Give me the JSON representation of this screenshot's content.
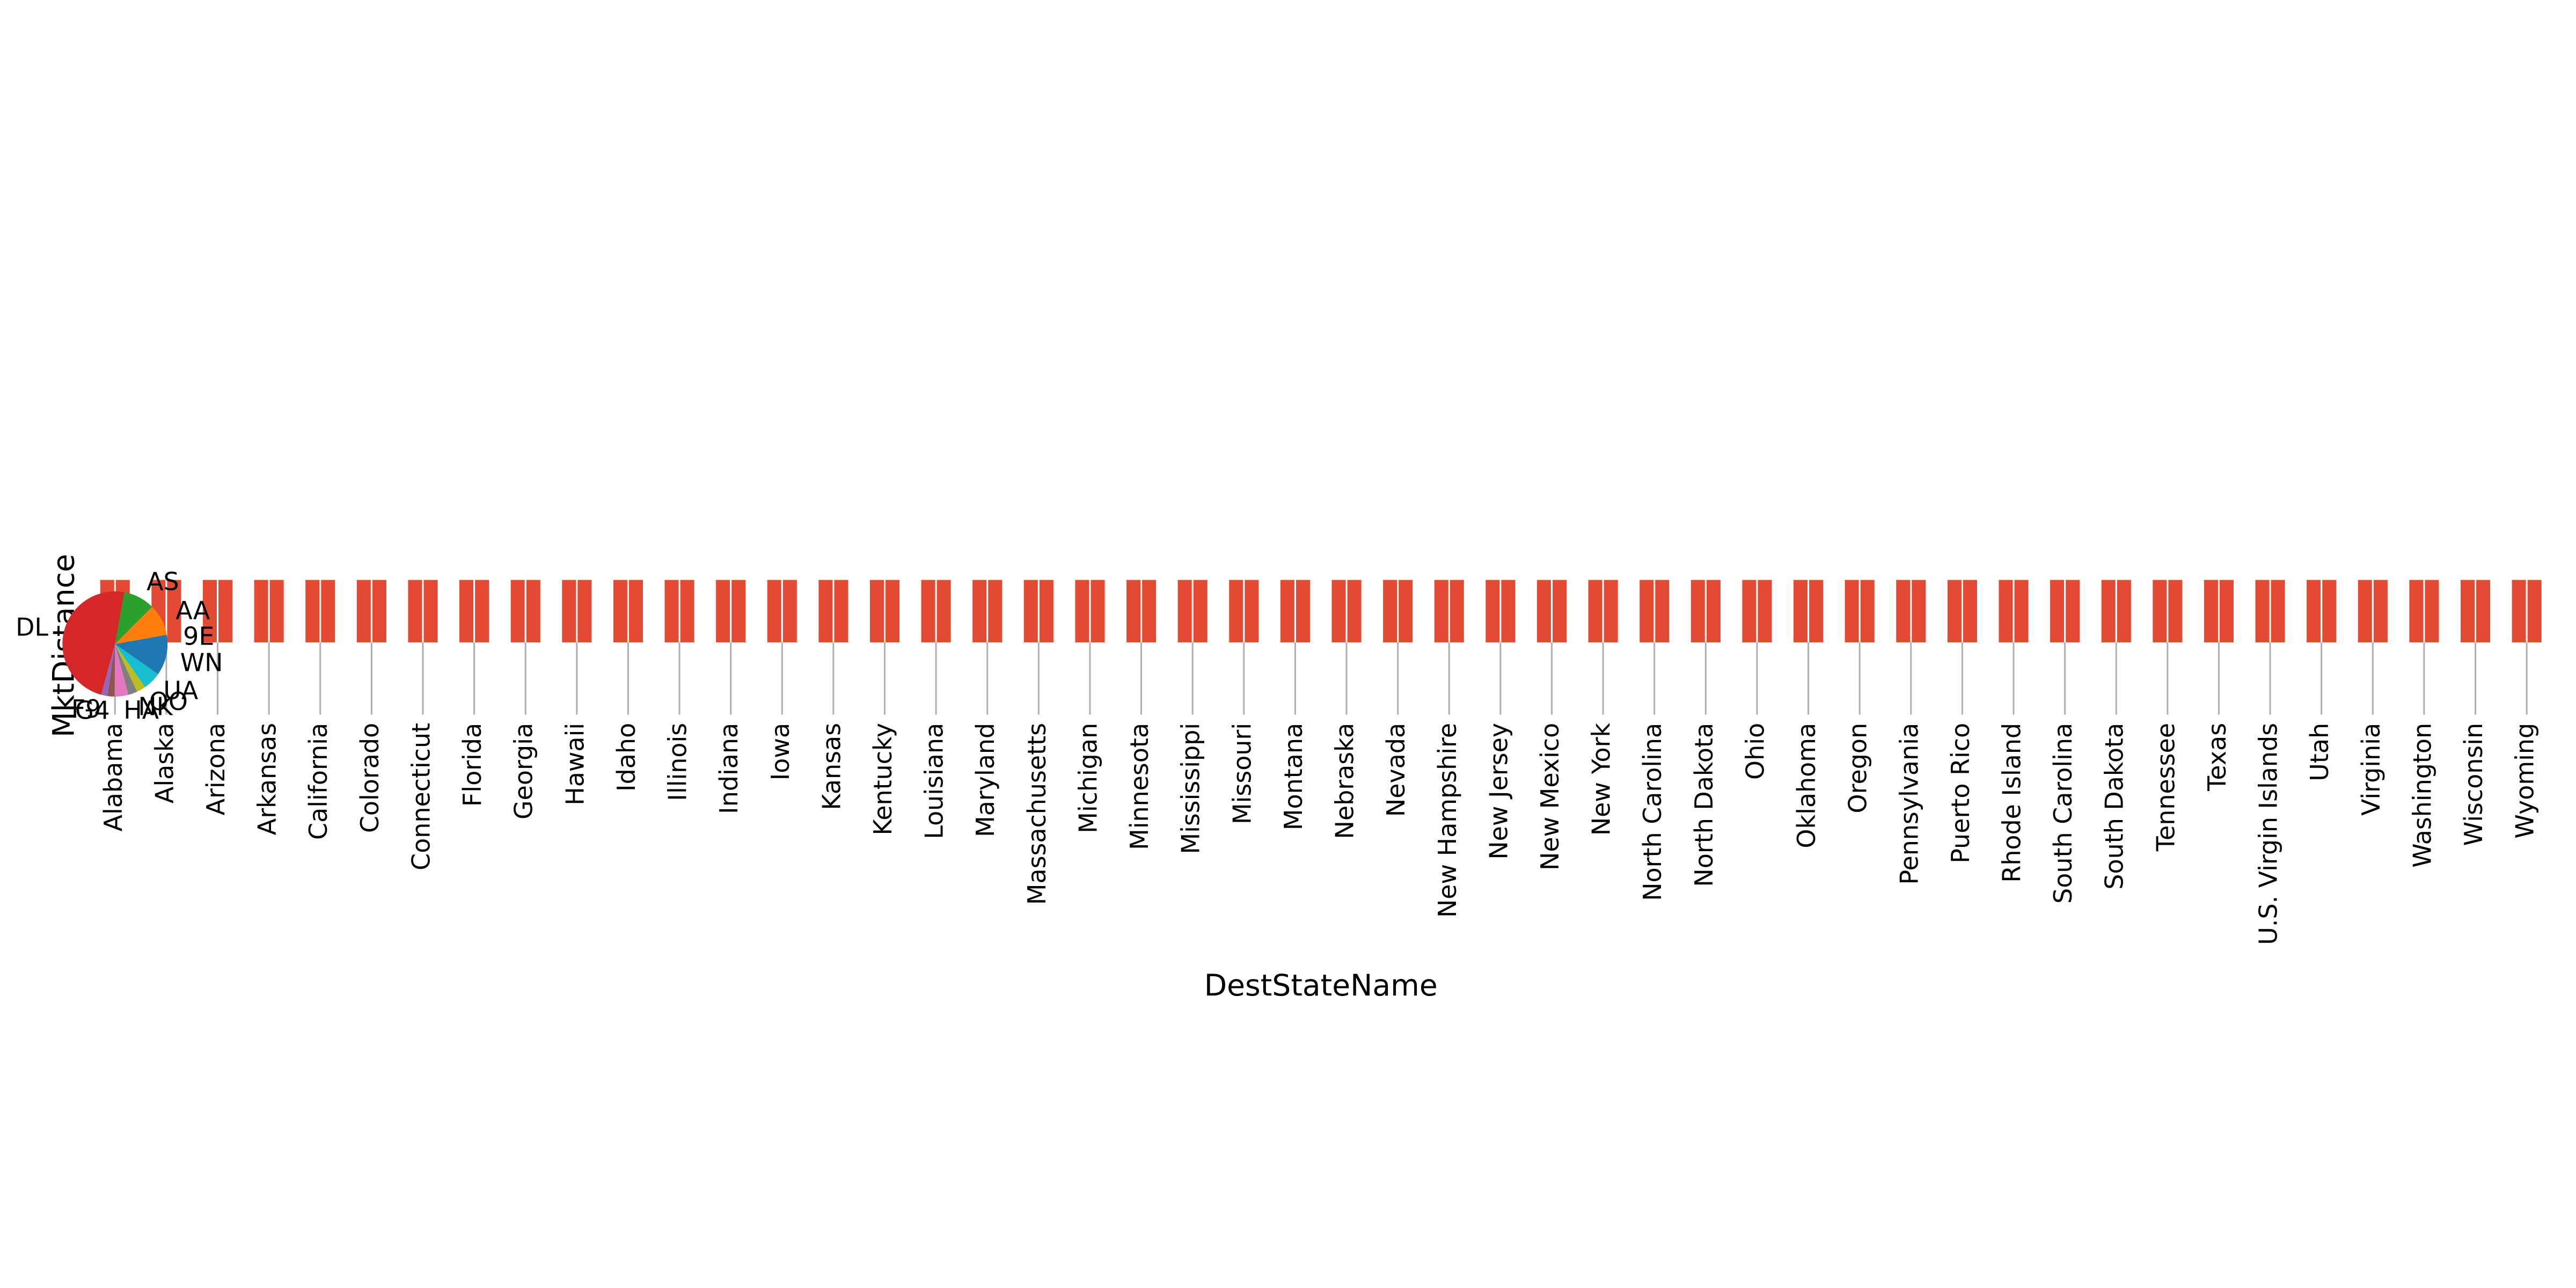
{
  "chart_data": [
    {
      "type": "bar",
      "x_label": "DestStateName",
      "y_label": "MktDistance",
      "categories": [
        "Alabama",
        "Alaska",
        "Arizona",
        "Arkansas",
        "California",
        "Colorado",
        "Connecticut",
        "Florida",
        "Georgia",
        "Hawaii",
        "Idaho",
        "Illinois",
        "Indiana",
        "Iowa",
        "Kansas",
        "Kentucky",
        "Louisiana",
        "Maryland",
        "Massachusetts",
        "Michigan",
        "Minnesota",
        "Mississippi",
        "Missouri",
        "Montana",
        "Nebraska",
        "Nevada",
        "New Hampshire",
        "New Jersey",
        "New Mexico",
        "New York",
        "North Carolina",
        "North Dakota",
        "Ohio",
        "Oklahoma",
        "Oregon",
        "Pennsylvania",
        "Puerto Rico",
        "Rhode Island",
        "South Carolina",
        "South Dakota",
        "Tennessee",
        "Texas",
        "U.S. Virgin Islands",
        "Utah",
        "Virginia",
        "Washington",
        "Wisconsin",
        "Wyoming"
      ],
      "values": [
        1,
        1,
        1,
        1,
        1,
        1,
        1,
        1,
        1,
        1,
        1,
        1,
        1,
        1,
        1,
        1,
        1,
        1,
        1,
        1,
        1,
        1,
        1,
        1,
        1,
        1,
        1,
        1,
        1,
        1,
        1,
        1,
        1,
        1,
        1,
        1,
        1,
        1,
        1,
        1,
        1,
        1,
        1,
        1,
        1,
        1,
        1,
        1
      ],
      "color": "#e24a33",
      "ylim": [
        0,
        1
      ]
    },
    {
      "type": "pie",
      "categories": [
        "9E",
        "AA",
        "AS",
        "DL",
        "F9",
        "G4",
        "HA",
        "NK",
        "OO",
        "UA",
        "WN"
      ],
      "values": [
        2.8,
        9.7,
        9.7,
        48.6,
        1.9,
        2.2,
        4.2,
        2.8,
        2.8,
        5.6,
        9.7
      ],
      "colors": [
        "#1f77b4",
        "#ff7f0e",
        "#2ca02c",
        "#d62728",
        "#9467bd",
        "#8c564b",
        "#e377c2",
        "#7f7f7f",
        "#bcbd22",
        "#17becf",
        "#1f77b4"
      ]
    }
  ]
}
